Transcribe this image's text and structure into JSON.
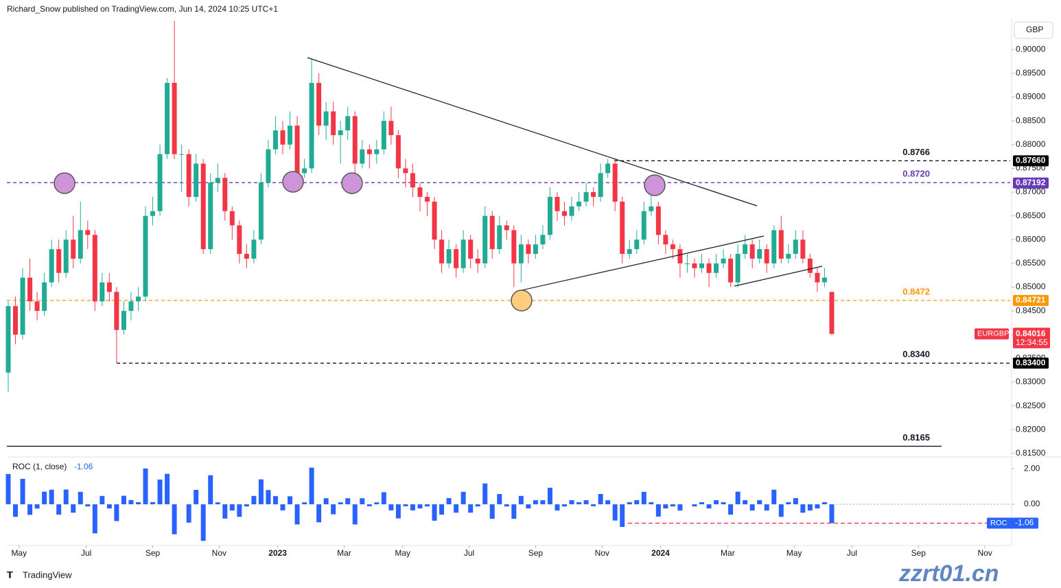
{
  "header": "Richard_Snow published on TradingView.com, Jun 14, 2024 10:25 UTC+1",
  "footer": "TradingView",
  "watermark": "zzrt01.cn",
  "chart_data": [
    {
      "type": "candlestick",
      "currency": "GBP",
      "symbol": "EURGBP",
      "countdown": "12:34:55",
      "up_color": "#22ab94",
      "down_color": "#f23645",
      "ohlc": [
        [
          0.832,
          0.847,
          0.828,
          0.846
        ],
        [
          0.846,
          0.848,
          0.838,
          0.84
        ],
        [
          0.84,
          0.854,
          0.839,
          0.852
        ],
        [
          0.852,
          0.856,
          0.845,
          0.847
        ],
        [
          0.847,
          0.849,
          0.843,
          0.845
        ],
        [
          0.845,
          0.853,
          0.844,
          0.851
        ],
        [
          0.851,
          0.86,
          0.85,
          0.858
        ],
        [
          0.858,
          0.86,
          0.851,
          0.853
        ],
        [
          0.853,
          0.862,
          0.852,
          0.86
        ],
        [
          0.86,
          0.865,
          0.854,
          0.856
        ],
        [
          0.856,
          0.868,
          0.855,
          0.862
        ],
        [
          0.862,
          0.864,
          0.858,
          0.861
        ],
        [
          0.861,
          0.862,
          0.845,
          0.847
        ],
        [
          0.847,
          0.853,
          0.846,
          0.851
        ],
        [
          0.851,
          0.853,
          0.847,
          0.849
        ],
        [
          0.849,
          0.85,
          0.834,
          0.841
        ],
        [
          0.841,
          0.847,
          0.84,
          0.845
        ],
        [
          0.845,
          0.849,
          0.843,
          0.847
        ],
        [
          0.847,
          0.85,
          0.845,
          0.848
        ],
        [
          0.848,
          0.867,
          0.847,
          0.865
        ],
        [
          0.865,
          0.869,
          0.863,
          0.866
        ],
        [
          0.866,
          0.88,
          0.865,
          0.878
        ],
        [
          0.878,
          0.894,
          0.877,
          0.893
        ],
        [
          0.893,
          0.906,
          0.877,
          0.878
        ],
        [
          0.878,
          0.88,
          0.87,
          0.878
        ],
        [
          0.878,
          0.879,
          0.867,
          0.869
        ],
        [
          0.869,
          0.878,
          0.868,
          0.876
        ],
        [
          0.876,
          0.877,
          0.857,
          0.858
        ],
        [
          0.858,
          0.874,
          0.857,
          0.872
        ],
        [
          0.872,
          0.876,
          0.87,
          0.873
        ],
        [
          0.873,
          0.874,
          0.864,
          0.866
        ],
        [
          0.866,
          0.867,
          0.86,
          0.863
        ],
        [
          0.863,
          0.864,
          0.855,
          0.857
        ],
        [
          0.857,
          0.859,
          0.854,
          0.856
        ],
        [
          0.856,
          0.862,
          0.855,
          0.86
        ],
        [
          0.86,
          0.874,
          0.859,
          0.872
        ],
        [
          0.872,
          0.881,
          0.871,
          0.879
        ],
        [
          0.879,
          0.886,
          0.878,
          0.883
        ],
        [
          0.883,
          0.885,
          0.878,
          0.88
        ],
        [
          0.88,
          0.887,
          0.879,
          0.884
        ],
        [
          0.884,
          0.886,
          0.872,
          0.874
        ],
        [
          0.874,
          0.877,
          0.873,
          0.875
        ],
        [
          0.875,
          0.898,
          0.874,
          0.893
        ],
        [
          0.893,
          0.895,
          0.882,
          0.884
        ],
        [
          0.884,
          0.889,
          0.881,
          0.887
        ],
        [
          0.887,
          0.889,
          0.88,
          0.882
        ],
        [
          0.882,
          0.885,
          0.876,
          0.883
        ],
        [
          0.883,
          0.888,
          0.881,
          0.886
        ],
        [
          0.886,
          0.887,
          0.874,
          0.876
        ],
        [
          0.876,
          0.881,
          0.875,
          0.879
        ],
        [
          0.879,
          0.88,
          0.875,
          0.878
        ],
        [
          0.878,
          0.881,
          0.876,
          0.879
        ],
        [
          0.879,
          0.887,
          0.878,
          0.885
        ],
        [
          0.885,
          0.888,
          0.88,
          0.882
        ],
        [
          0.882,
          0.883,
          0.873,
          0.875
        ],
        [
          0.875,
          0.877,
          0.871,
          0.874
        ],
        [
          0.874,
          0.876,
          0.869,
          0.871
        ],
        [
          0.871,
          0.872,
          0.866,
          0.869
        ],
        [
          0.869,
          0.87,
          0.865,
          0.868
        ],
        [
          0.868,
          0.869,
          0.858,
          0.86
        ],
        [
          0.86,
          0.862,
          0.853,
          0.855
        ],
        [
          0.855,
          0.86,
          0.854,
          0.858
        ],
        [
          0.858,
          0.859,
          0.852,
          0.854
        ],
        [
          0.854,
          0.862,
          0.853,
          0.86
        ],
        [
          0.86,
          0.861,
          0.854,
          0.856
        ],
        [
          0.856,
          0.858,
          0.853,
          0.855
        ],
        [
          0.855,
          0.867,
          0.854,
          0.865
        ],
        [
          0.865,
          0.866,
          0.856,
          0.858
        ],
        [
          0.858,
          0.865,
          0.857,
          0.863
        ],
        [
          0.863,
          0.864,
          0.86,
          0.862
        ],
        [
          0.862,
          0.863,
          0.85,
          0.855
        ],
        [
          0.855,
          0.861,
          0.851,
          0.859
        ],
        [
          0.859,
          0.86,
          0.855,
          0.857
        ],
        [
          0.857,
          0.861,
          0.856,
          0.859
        ],
        [
          0.859,
          0.863,
          0.858,
          0.861
        ],
        [
          0.861,
          0.871,
          0.86,
          0.869
        ],
        [
          0.869,
          0.87,
          0.864,
          0.866
        ],
        [
          0.866,
          0.868,
          0.863,
          0.865
        ],
        [
          0.865,
          0.869,
          0.864,
          0.867
        ],
        [
          0.867,
          0.87,
          0.866,
          0.868
        ],
        [
          0.868,
          0.872,
          0.867,
          0.87
        ],
        [
          0.87,
          0.871,
          0.867,
          0.869
        ],
        [
          0.869,
          0.876,
          0.868,
          0.874
        ],
        [
          0.874,
          0.877,
          0.873,
          0.876
        ],
        [
          0.876,
          0.877,
          0.866,
          0.868
        ],
        [
          0.868,
          0.869,
          0.855,
          0.857
        ],
        [
          0.857,
          0.86,
          0.856,
          0.858
        ],
        [
          0.858,
          0.862,
          0.857,
          0.86
        ],
        [
          0.86,
          0.868,
          0.859,
          0.866
        ],
        [
          0.866,
          0.87,
          0.865,
          0.867
        ],
        [
          0.867,
          0.868,
          0.859,
          0.861
        ],
        [
          0.861,
          0.862,
          0.857,
          0.859
        ],
        [
          0.859,
          0.86,
          0.856,
          0.858
        ],
        [
          0.858,
          0.859,
          0.852,
          0.855
        ],
        [
          0.855,
          0.857,
          0.853,
          0.855
        ],
        [
          0.855,
          0.856,
          0.852,
          0.854
        ],
        [
          0.854,
          0.857,
          0.853,
          0.855
        ],
        [
          0.855,
          0.856,
          0.85,
          0.853
        ],
        [
          0.853,
          0.857,
          0.852,
          0.855
        ],
        [
          0.855,
          0.858,
          0.854,
          0.856
        ],
        [
          0.856,
          0.857,
          0.85,
          0.851
        ],
        [
          0.851,
          0.859,
          0.85,
          0.857
        ],
        [
          0.857,
          0.861,
          0.856,
          0.859
        ],
        [
          0.859,
          0.86,
          0.854,
          0.856
        ],
        [
          0.856,
          0.86,
          0.855,
          0.858
        ],
        [
          0.858,
          0.859,
          0.853,
          0.855
        ],
        [
          0.855,
          0.863,
          0.854,
          0.862
        ],
        [
          0.862,
          0.865,
          0.855,
          0.856
        ],
        [
          0.856,
          0.859,
          0.855,
          0.857
        ],
        [
          0.857,
          0.862,
          0.856,
          0.86
        ],
        [
          0.86,
          0.862,
          0.855,
          0.856
        ],
        [
          0.856,
          0.857,
          0.852,
          0.853
        ],
        [
          0.853,
          0.854,
          0.849,
          0.851
        ],
        [
          0.851,
          0.854,
          0.85,
          0.852
        ],
        [
          0.849,
          0.849,
          0.84,
          0.84016
        ]
      ],
      "ylim": [
        0.8144,
        0.9064
      ],
      "yticks": [
        {
          "value": 0.9,
          "label": "0.90000"
        },
        {
          "value": 0.895,
          "label": "0.89500"
        },
        {
          "value": 0.89,
          "label": "0.89000"
        },
        {
          "value": 0.885,
          "label": "0.88500"
        },
        {
          "value": 0.88,
          "label": "0.88000"
        },
        {
          "value": 0.875,
          "label": "0.87500"
        },
        {
          "value": 0.87,
          "label": "0.87000"
        },
        {
          "value": 0.865,
          "label": "0.86500"
        },
        {
          "value": 0.86,
          "label": "0.86000"
        },
        {
          "value": 0.855,
          "label": "0.85500"
        },
        {
          "value": 0.85,
          "label": "0.85000"
        },
        {
          "value": 0.845,
          "label": "0.84500"
        },
        {
          "value": 0.84,
          "label": "0.84000"
        },
        {
          "value": 0.835,
          "label": "0.83500"
        },
        {
          "value": 0.83,
          "label": "0.83000"
        },
        {
          "value": 0.825,
          "label": "0.82500"
        },
        {
          "value": 0.82,
          "label": "0.82000"
        },
        {
          "value": 0.815,
          "label": "0.81500"
        }
      ],
      "xticks": [
        {
          "value": 1.5,
          "label": "May"
        },
        {
          "value": 10.8,
          "label": "Jul"
        },
        {
          "value": 20,
          "label": "Sep"
        },
        {
          "value": 29.2,
          "label": "Nov"
        },
        {
          "value": 37.3,
          "label": "2023"
        },
        {
          "value": 46.5,
          "label": "Mar"
        },
        {
          "value": 54.6,
          "label": "May"
        },
        {
          "value": 63.8,
          "label": "Jul"
        },
        {
          "value": 73,
          "label": "Sep"
        },
        {
          "value": 82.2,
          "label": "Nov"
        },
        {
          "value": 90.3,
          "label": "2024"
        },
        {
          "value": 99.6,
          "label": "Mar"
        },
        {
          "value": 108.8,
          "label": "May"
        },
        {
          "value": 116.8,
          "label": "Jul"
        },
        {
          "value": 126,
          "label": "Sep"
        },
        {
          "value": 135.2,
          "label": "Nov"
        }
      ],
      "levels": [
        {
          "value": 0.8766,
          "label": "0.8766",
          "color": "#131722",
          "style": "dashed",
          "tag": {
            "value": 0.8766,
            "label": "0.87660"
          }
        },
        {
          "value": 0.872,
          "label": "0.8720",
          "color": "#673ab7",
          "style": "dashed",
          "tag": 0.87192
        },
        {
          "value": 0.8472,
          "label": "0.8472",
          "color": "#ff9800",
          "style": "dashed",
          "tag": 0.84721
        },
        {
          "value": 0.834,
          "label": "0.8340",
          "color": "#131722",
          "style": "dashed",
          "tag": {
            "value": 0.834,
            "label": "0.83400"
          }
        },
        {
          "value": 0.8165,
          "label": "0.8165",
          "color": "#131722",
          "style": "solid"
        }
      ]
    },
    {
      "type": "bar",
      "title": "ROC (1, close)",
      "name": "ROC",
      "color": "#2962ff",
      "values": [
        1.7,
        -0.7,
        1.43,
        -0.59,
        -0.24,
        0.71,
        0.82,
        -0.58,
        0.83,
        -0.47,
        0.7,
        -0.12,
        -1.63,
        0.47,
        -0.23,
        -0.94,
        0.48,
        0.24,
        0.12,
        2.01,
        0.12,
        1.39,
        1.71,
        -1.68,
        0,
        -1.03,
        0.81,
        -2.05,
        1.63,
        0.11,
        -0.8,
        -0.35,
        -0.7,
        -0.12,
        0.47,
        1.4,
        0.8,
        0.46,
        -0.34,
        0.45,
        -1.13,
        0.11,
        2.06,
        -1.01,
        0.34,
        -0.56,
        0.11,
        0.34,
        -1.13,
        0.34,
        -0.11,
        0.11,
        0.68,
        -0.34,
        -0.79,
        -0.11,
        -0.34,
        -0.23,
        -0.12,
        -0.92,
        -0.58,
        0.35,
        -0.47,
        0.7,
        -0.47,
        -0.12,
        1.17,
        -0.81,
        0.58,
        -0.12,
        -0.81,
        0.47,
        -0.23,
        0.23,
        0.23,
        0.93,
        -0.35,
        -0.12,
        0.23,
        0.12,
        0.23,
        -0.11,
        0.58,
        0.23,
        -0.91,
        -1.27,
        0.12,
        0.23,
        0.7,
        0.12,
        -0.69,
        -0.23,
        -0.12,
        -0.35,
        0,
        -0.12,
        0.12,
        -0.23,
        0.23,
        0.12,
        -0.58,
        0.71,
        0.23,
        -0.35,
        0.23,
        -0.35,
        0.82,
        -0.7,
        0.12,
        0.35,
        -0.47,
        -0.35,
        -0.23,
        0.12,
        -1.06
      ],
      "ylim": [
        -2.31,
        2.62
      ],
      "yticks": [
        {
          "value": 2,
          "label": "2.00"
        },
        {
          "value": 0,
          "label": "0.00"
        }
      ]
    }
  ]
}
